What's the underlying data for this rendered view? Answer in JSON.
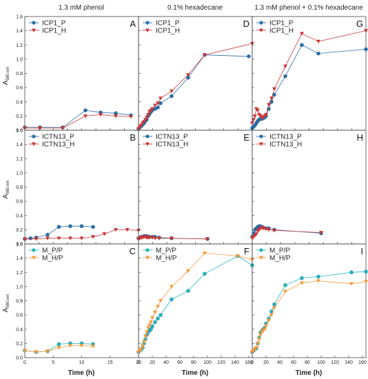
{
  "figure": {
    "column_headers": [
      "1.3 mM phenol",
      "0.1% hexadecane",
      "1.3 mM phenol + 0.1% hexadecane"
    ],
    "ylabel": {
      "main": "A",
      "sub": "580 nm"
    },
    "xlabel": "Time (h)",
    "colors": {
      "icp_p": "#2a6ea8",
      "icp_h": "#c8383a",
      "m_pp": "#22b7bf",
      "m_hp": "#f59a3a"
    }
  },
  "chart_data": [
    {
      "id": "A",
      "type": "line",
      "xlim": [
        0,
        15
      ],
      "ylim": [
        0,
        1.6
      ],
      "series": [
        {
          "name": "ICP1_P",
          "marker": "circle",
          "color": "#2a6ea8",
          "x": [
            0,
            2,
            5,
            8,
            10,
            12,
            14
          ],
          "y": [
            0.04,
            0.04,
            0.04,
            0.28,
            0.25,
            0.24,
            0.21
          ]
        },
        {
          "name": "ICP1_H",
          "marker": "triangle",
          "color": "#c8383a",
          "x": [
            0,
            2,
            5,
            8,
            10,
            12,
            14
          ],
          "y": [
            0.03,
            0.03,
            0.03,
            0.2,
            0.22,
            0.2,
            0.19
          ]
        }
      ]
    },
    {
      "id": "D",
      "type": "line",
      "xlim": [
        0,
        165
      ],
      "ylim": [
        0,
        1.6
      ],
      "series": [
        {
          "name": "ICP1_P",
          "marker": "circle",
          "color": "#2a6ea8",
          "x": [
            0,
            2,
            4,
            6,
            8,
            10,
            12,
            14,
            16,
            18,
            20,
            24,
            28,
            32,
            48,
            72,
            96,
            160
          ],
          "y": [
            0.02,
            0.04,
            0.06,
            0.08,
            0.1,
            0.13,
            0.15,
            0.2,
            0.23,
            0.26,
            0.28,
            0.3,
            0.32,
            0.38,
            0.48,
            0.74,
            1.06,
            1.04
          ]
        },
        {
          "name": "ICP1_H",
          "marker": "triangle",
          "color": "#c8383a",
          "x": [
            0,
            2,
            4,
            6,
            8,
            10,
            12,
            14,
            16,
            18,
            20,
            24,
            28,
            32,
            48,
            72,
            96,
            165
          ],
          "y": [
            0.02,
            0.05,
            0.07,
            0.1,
            0.12,
            0.15,
            0.18,
            0.22,
            0.26,
            0.28,
            0.3,
            0.35,
            0.38,
            0.45,
            0.55,
            0.78,
            1.06,
            1.22
          ]
        }
      ]
    },
    {
      "id": "G",
      "type": "line",
      "xlim": [
        0,
        165
      ],
      "ylim": [
        0,
        1.6
      ],
      "series": [
        {
          "name": "ICP1_P",
          "marker": "circle",
          "color": "#2a6ea8",
          "x": [
            0,
            2,
            4,
            6,
            8,
            10,
            12,
            14,
            16,
            18,
            20,
            24,
            28,
            32,
            48,
            72,
            96,
            165
          ],
          "y": [
            0.03,
            0.05,
            0.07,
            0.1,
            0.13,
            0.15,
            0.16,
            0.16,
            0.17,
            0.18,
            0.2,
            0.3,
            0.4,
            0.5,
            0.76,
            1.2,
            1.08,
            1.14
          ]
        },
        {
          "name": "ICP1_H",
          "marker": "triangle",
          "color": "#c8383a",
          "x": [
            0,
            2,
            4,
            6,
            8,
            10,
            12,
            14,
            16,
            18,
            20,
            24,
            28,
            32,
            48,
            72,
            96,
            165
          ],
          "y": [
            0.1,
            0.15,
            0.2,
            0.3,
            0.28,
            0.22,
            0.2,
            0.18,
            0.18,
            0.2,
            0.22,
            0.36,
            0.45,
            0.58,
            0.9,
            1.36,
            1.25,
            1.4
          ]
        }
      ]
    },
    {
      "id": "B",
      "type": "line",
      "xlim": [
        0,
        20
      ],
      "ylim": [
        0,
        1.6
      ],
      "series": [
        {
          "name": "ICTN13_P",
          "marker": "circle",
          "color": "#2a6ea8",
          "x": [
            0,
            1,
            2,
            4,
            6,
            8,
            10,
            12
          ],
          "y": [
            0.07,
            0.08,
            0.09,
            0.13,
            0.24,
            0.25,
            0.25,
            0.24
          ]
        },
        {
          "name": "ICTN13_H",
          "marker": "triangle",
          "color": "#c8383a",
          "x": [
            0,
            2,
            4,
            6,
            8,
            10,
            12,
            14,
            16,
            18,
            20
          ],
          "y": [
            0.07,
            0.07,
            0.08,
            0.08,
            0.08,
            0.08,
            0.1,
            0.14,
            0.2,
            0.2,
            0.19
          ]
        }
      ]
    },
    {
      "id": "E",
      "type": "line",
      "xlim": [
        0,
        165
      ],
      "ylim": [
        0,
        1.6
      ],
      "series": [
        {
          "name": "ICTN13_P",
          "marker": "circle",
          "color": "#2a6ea8",
          "x": [
            0,
            2,
            4,
            6,
            8,
            10,
            12,
            14,
            16,
            20,
            24,
            30,
            48,
            100
          ],
          "y": [
            0.08,
            0.09,
            0.1,
            0.1,
            0.11,
            0.11,
            0.11,
            0.1,
            0.1,
            0.1,
            0.1,
            0.09,
            0.08,
            0.07
          ]
        },
        {
          "name": "ICTN13_H",
          "marker": "triangle",
          "color": "#c8383a",
          "x": [
            0,
            2,
            4,
            6,
            8,
            10,
            12,
            14,
            16,
            20,
            24,
            30,
            48,
            100
          ],
          "y": [
            0.07,
            0.08,
            0.09,
            0.09,
            0.1,
            0.1,
            0.09,
            0.09,
            0.09,
            0.09,
            0.08,
            0.08,
            0.08,
            0.07
          ]
        }
      ]
    },
    {
      "id": "H",
      "type": "line",
      "xlim": [
        0,
        165
      ],
      "ylim": [
        0,
        1.6
      ],
      "series": [
        {
          "name": "ICTN13_P",
          "marker": "circle",
          "color": "#2a6ea8",
          "x": [
            0,
            2,
            4,
            6,
            8,
            10,
            12,
            14,
            16,
            20,
            24,
            32,
            100
          ],
          "y": [
            0.1,
            0.15,
            0.2,
            0.22,
            0.24,
            0.25,
            0.25,
            0.24,
            0.23,
            0.22,
            0.22,
            0.2,
            0.15
          ]
        },
        {
          "name": "ICTN13_H",
          "marker": "triangle",
          "color": "#c8383a",
          "x": [
            0,
            2,
            4,
            6,
            8,
            10,
            12,
            14,
            16,
            20,
            24,
            32,
            100
          ],
          "y": [
            0.08,
            0.1,
            0.12,
            0.14,
            0.18,
            0.2,
            0.22,
            0.23,
            0.22,
            0.21,
            0.2,
            0.19,
            0.16
          ]
        }
      ]
    },
    {
      "id": "C",
      "type": "line",
      "xlim": [
        0,
        20
      ],
      "ylim": [
        0,
        1.6
      ],
      "series": [
        {
          "name": "M_P/P",
          "marker": "circle",
          "color": "#22b7bf",
          "x": [
            0,
            2,
            4,
            6,
            8,
            10,
            12
          ],
          "y": [
            0.1,
            0.08,
            0.09,
            0.19,
            0.2,
            0.2,
            0.19
          ]
        },
        {
          "name": "M_H/P",
          "marker": "triangle",
          "color": "#f59a3a",
          "x": [
            0,
            2,
            4,
            6,
            8,
            10,
            12
          ],
          "y": [
            0.1,
            0.08,
            0.09,
            0.14,
            0.17,
            0.17,
            0.16
          ]
        }
      ]
    },
    {
      "id": "F",
      "type": "line",
      "xlim": [
        0,
        165
      ],
      "ylim": [
        0,
        1.6
      ],
      "series": [
        {
          "name": "M_P/P",
          "marker": "circle",
          "color": "#22b7bf",
          "x": [
            0,
            2,
            4,
            6,
            8,
            10,
            12,
            14,
            16,
            18,
            20,
            24,
            28,
            32,
            48,
            72,
            96,
            144,
            165
          ],
          "y": [
            0.08,
            0.1,
            0.12,
            0.14,
            0.2,
            0.26,
            0.32,
            0.36,
            0.38,
            0.4,
            0.44,
            0.5,
            0.55,
            0.6,
            0.82,
            0.94,
            1.18,
            1.43,
            1.3
          ]
        },
        {
          "name": "M_H/P",
          "marker": "triangle",
          "color": "#f59a3a",
          "x": [
            0,
            2,
            4,
            6,
            8,
            10,
            12,
            14,
            16,
            18,
            20,
            24,
            28,
            32,
            48,
            72,
            96,
            144,
            165
          ],
          "y": [
            0.08,
            0.1,
            0.12,
            0.16,
            0.22,
            0.3,
            0.36,
            0.42,
            0.46,
            0.5,
            0.56,
            0.64,
            0.72,
            0.8,
            1.0,
            1.22,
            1.47,
            1.43,
            1.38
          ]
        }
      ]
    },
    {
      "id": "I",
      "type": "line",
      "xlim": [
        0,
        165
      ],
      "ylim": [
        0,
        1.6
      ],
      "series": [
        {
          "name": "M_P/P",
          "marker": "circle",
          "color": "#22b7bf",
          "x": [
            0,
            2,
            4,
            6,
            8,
            10,
            12,
            14,
            16,
            18,
            20,
            24,
            28,
            32,
            48,
            72,
            96,
            144,
            165
          ],
          "y": [
            0.08,
            0.1,
            0.12,
            0.13,
            0.2,
            0.28,
            0.35,
            0.38,
            0.4,
            0.42,
            0.48,
            0.55,
            0.65,
            0.75,
            1.02,
            1.12,
            1.14,
            1.2,
            1.21
          ]
        },
        {
          "name": "M_H/P",
          "marker": "triangle",
          "color": "#f59a3a",
          "x": [
            0,
            2,
            4,
            6,
            8,
            10,
            12,
            14,
            16,
            18,
            20,
            24,
            28,
            32,
            48,
            72,
            96,
            144,
            165
          ],
          "y": [
            0.08,
            0.1,
            0.12,
            0.14,
            0.2,
            0.26,
            0.32,
            0.36,
            0.38,
            0.4,
            0.45,
            0.52,
            0.6,
            0.7,
            0.93,
            1.05,
            1.08,
            1.04,
            1.07
          ]
        }
      ]
    }
  ],
  "panels": [
    {
      "id": "A",
      "label": "A",
      "col": 0,
      "row": 0,
      "x_ticks": [],
      "legend": [
        "ICP1_P",
        "ICP1_H"
      ]
    },
    {
      "id": "D",
      "label": "D",
      "col": 1,
      "row": 0,
      "x_ticks": [],
      "legend": [
        "ICP1_P",
        "ICP1_H"
      ]
    },
    {
      "id": "G",
      "label": "G",
      "col": 2,
      "row": 0,
      "x_ticks": [],
      "legend": [
        "ICP1_P",
        "ICP1_H"
      ]
    },
    {
      "id": "B",
      "label": "B",
      "col": 0,
      "row": 1,
      "x_ticks": [],
      "legend": [
        "ICTN13_P",
        "ICTN13_H"
      ]
    },
    {
      "id": "E",
      "label": "E",
      "col": 1,
      "row": 1,
      "x_ticks": [],
      "legend": [
        "ICTN13_P",
        "ICTN13_H"
      ]
    },
    {
      "id": "H",
      "label": "H",
      "col": 2,
      "row": 1,
      "x_ticks": [],
      "legend": [
        "ICTN13_P",
        "ICTN13_H"
      ]
    },
    {
      "id": "C",
      "label": "C",
      "col": 0,
      "row": 2,
      "x_ticks": [
        "0",
        "5",
        "10",
        "15",
        "20"
      ],
      "legend": [
        "M_P/P",
        "M_H/P"
      ]
    },
    {
      "id": "F",
      "label": "F",
      "col": 1,
      "row": 2,
      "x_ticks": [
        "0",
        "20",
        "40",
        "60",
        "80",
        "100",
        "120",
        "140",
        "160"
      ],
      "legend": [
        "M_P/P",
        "M_H/P"
      ]
    },
    {
      "id": "I",
      "label": "I",
      "col": 2,
      "row": 2,
      "x_ticks": [
        "0",
        "20",
        "40",
        "60",
        "80",
        "100",
        "120",
        "140",
        "160"
      ],
      "legend": [
        "M_P/P",
        "M_H/P"
      ]
    }
  ],
  "y_ticks": [
    "0.0",
    "0.2",
    "0.4",
    "0.6",
    "0.8",
    "1.0",
    "1.2",
    "1.4",
    "1.6"
  ]
}
